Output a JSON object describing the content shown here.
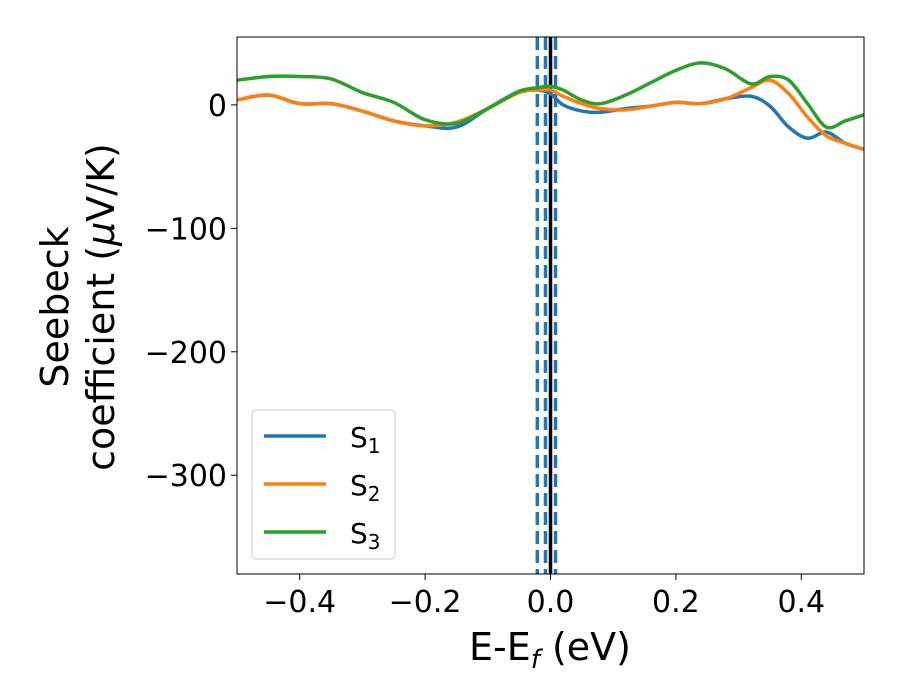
{
  "chart_data": {
    "type": "line",
    "title": "",
    "xlabel": "E-E_f (eV)",
    "xlabel_main": "E-E",
    "xlabel_sub": "f",
    "xlabel_unit": " (eV)",
    "ylabel_line1": "Seebeck",
    "ylabel_line2_text": "coefficient  (",
    "ylabel_mu": "μ",
    "ylabel_line2_unit": "V/K)",
    "xlim": [
      -0.5,
      0.5
    ],
    "ylim": [
      -380,
      55
    ],
    "xticks": [
      -0.4,
      -0.2,
      0.0,
      0.2,
      0.4
    ],
    "xtick_labels": [
      "−0.4",
      "−0.2",
      "0.0",
      "0.2",
      "0.4"
    ],
    "yticks": [
      0,
      -100,
      -200,
      -300
    ],
    "ytick_labels": [
      "0",
      "−100",
      "−200",
      "−300"
    ],
    "grid": false,
    "legend_position": "lower-left",
    "vertical_lines": [
      {
        "x": 0.0,
        "style": "solid",
        "color": "#000000"
      },
      {
        "x": -0.021,
        "style": "dashed",
        "color": "#1f77b4"
      },
      {
        "x": -0.008,
        "style": "dashed",
        "color": "#1f77b4"
      },
      {
        "x": 0.008,
        "style": "dashed",
        "color": "#1f77b4"
      }
    ],
    "series": [
      {
        "name": "S",
        "sub": "1",
        "color": "#1f77b4",
        "x": [
          -0.5,
          -0.45,
          -0.4,
          -0.35,
          -0.3,
          -0.25,
          -0.2,
          -0.15,
          -0.1,
          -0.05,
          -0.02,
          0.0,
          0.02,
          0.05,
          0.08,
          0.12,
          0.16,
          0.2,
          0.24,
          0.28,
          0.32,
          0.35,
          0.38,
          0.41,
          0.44,
          0.47,
          0.5
        ],
        "y": [
          4,
          8,
          1,
          1,
          -5,
          -13,
          -17,
          -18,
          -3,
          11,
          12,
          9,
          0,
          -5,
          -6,
          -3,
          -1,
          2,
          1,
          5,
          7,
          -1,
          -18,
          -27,
          -22,
          -31,
          -36
        ]
      },
      {
        "name": "S",
        "sub": "2",
        "color": "#ff7f0e",
        "x": [
          -0.5,
          -0.45,
          -0.4,
          -0.35,
          -0.3,
          -0.25,
          -0.2,
          -0.15,
          -0.1,
          -0.05,
          -0.02,
          0.0,
          0.02,
          0.05,
          0.08,
          0.12,
          0.16,
          0.2,
          0.24,
          0.28,
          0.32,
          0.35,
          0.38,
          0.41,
          0.44,
          0.47,
          0.5
        ],
        "y": [
          4,
          8,
          1,
          1,
          -5,
          -13,
          -17,
          -14,
          -3,
          10,
          12,
          12,
          7,
          1,
          -3,
          -4,
          -1,
          2,
          1,
          5,
          14,
          20,
          9,
          -10,
          -25,
          -31,
          -36
        ]
      },
      {
        "name": "S",
        "sub": "3",
        "color": "#2ca02c",
        "x": [
          -0.5,
          -0.45,
          -0.4,
          -0.35,
          -0.3,
          -0.25,
          -0.2,
          -0.15,
          -0.1,
          -0.05,
          -0.02,
          0.0,
          0.02,
          0.05,
          0.08,
          0.12,
          0.16,
          0.2,
          0.24,
          0.28,
          0.32,
          0.35,
          0.38,
          0.41,
          0.44,
          0.47,
          0.5
        ],
        "y": [
          20,
          23,
          23,
          21,
          10,
          2,
          -12,
          -15,
          -3,
          11,
          14,
          15,
          12,
          4,
          1,
          8,
          18,
          28,
          34,
          29,
          17,
          23,
          20,
          1,
          -18,
          -13,
          -8
        ]
      }
    ]
  }
}
